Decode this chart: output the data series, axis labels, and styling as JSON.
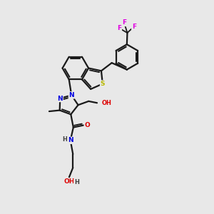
{
  "background_color": "#e8e8e8",
  "bond_color": "#1a1a1a",
  "atom_colors": {
    "N": "#0000e0",
    "O": "#dd0000",
    "S": "#b8b800",
    "F": "#e000e0",
    "H": "#404040",
    "C": "#1a1a1a"
  },
  "figsize": [
    3.0,
    3.0
  ],
  "dpi": 100
}
